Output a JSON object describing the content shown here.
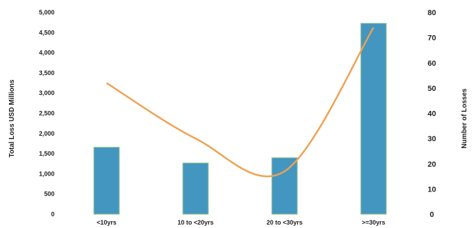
{
  "chart_data": {
    "type": "bar",
    "categories": [
      "<10yrs",
      "10 to <20yrs",
      "20 to <30yrs",
      ">=30yrs"
    ],
    "series": [
      {
        "name": "",
        "type": "bar",
        "axis": "left",
        "values": [
          1660,
          1270,
          1400,
          4730
        ]
      },
      {
        "name": "",
        "type": "line",
        "axis": "right",
        "smooth": true,
        "values": [
          52,
          30,
          17,
          74
        ]
      }
    ],
    "title": "",
    "xlabel": "",
    "ylabel": "Total Loss USD Millions",
    "y2label": "Number of Losses",
    "ylim": [
      0,
      5000
    ],
    "y2lim": [
      0,
      80
    ],
    "yticks": [
      "0",
      "500",
      "1,000",
      "1,500",
      "2,000",
      "2,500",
      "3,000",
      "3,500",
      "4,000",
      "4,500",
      "5,000"
    ],
    "y2ticks": [
      "0",
      "10",
      "20",
      "30",
      "40",
      "50",
      "60",
      "70",
      "80"
    ],
    "grid": false,
    "legend": "none",
    "colors": {
      "bar": "#4396c0",
      "bar_edge": "#9cc98a",
      "line": "#f0a050"
    }
  }
}
